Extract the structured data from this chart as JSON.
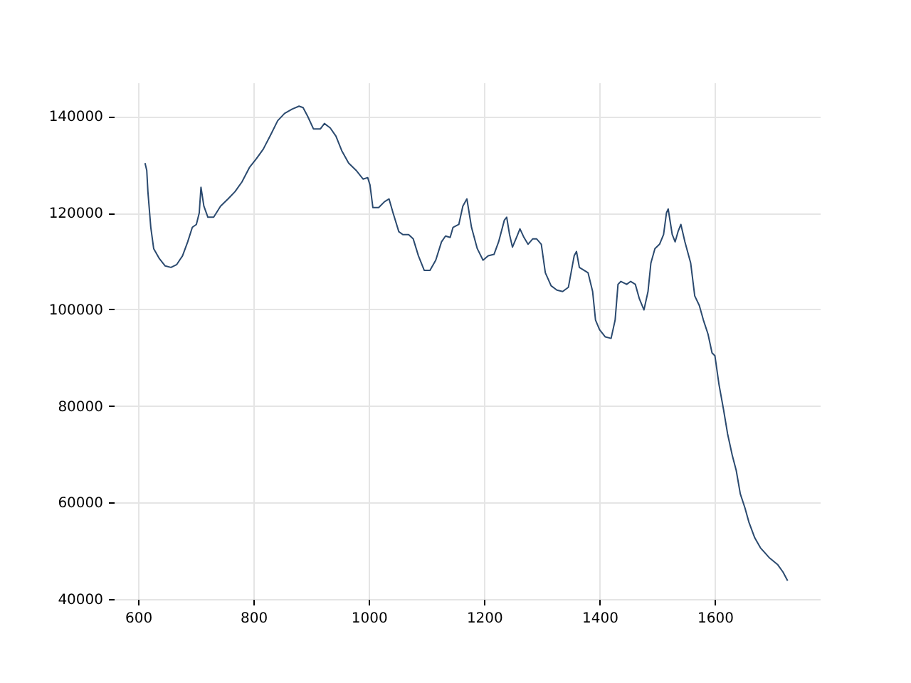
{
  "chart_data": {
    "type": "line",
    "grid": true,
    "xlim": [
      558,
      1782
    ],
    "ylim": [
      40000,
      147000
    ],
    "xticks": [
      600,
      800,
      1000,
      1200,
      1400,
      1600
    ],
    "yticks": [
      40000,
      60000,
      80000,
      100000,
      120000,
      140000
    ],
    "series": [
      {
        "color": "#2b4a6f",
        "x": [
          612,
          615,
          617,
          622,
          627,
          637,
          647,
          657,
          667,
          677,
          686,
          694,
          701,
          706,
          709,
          714,
          721,
          731,
          743,
          756,
          768,
          780,
          793,
          805,
          817,
          830,
          842,
          854,
          867,
          879,
          886,
          894,
          904,
          916,
          923,
          933,
          943,
          953,
          965,
          978,
          990,
          998,
          1002,
          1007,
          1017,
          1027,
          1035,
          1042,
          1052,
          1059,
          1069,
          1077,
          1086,
          1096,
          1106,
          1116,
          1126,
          1133,
          1141,
          1146,
          1156,
          1163,
          1170,
          1178,
          1188,
          1198,
          1207,
          1217,
          1225,
          1235,
          1239,
          1244,
          1249,
          1257,
          1262,
          1269,
          1276,
          1284,
          1291,
          1299,
          1306,
          1316,
          1326,
          1336,
          1346,
          1356,
          1360,
          1365,
          1373,
          1380,
          1388,
          1393,
          1400,
          1410,
          1420,
          1427,
          1432,
          1437,
          1447,
          1454,
          1462,
          1469,
          1477,
          1484,
          1489,
          1496,
          1504,
          1511,
          1516,
          1519,
          1526,
          1531,
          1536,
          1541,
          1548,
          1558,
          1565,
          1573,
          1580,
          1588,
          1595,
          1600,
          1607,
          1615,
          1622,
          1630,
          1637,
          1644,
          1652,
          1659,
          1669,
          1679,
          1694,
          1709,
          1718,
          1726
        ],
        "values": [
          130300,
          128800,
          124400,
          117000,
          112600,
          110500,
          109000,
          108700,
          109300,
          111100,
          114000,
          117000,
          117600,
          120000,
          125300,
          121400,
          119100,
          119100,
          121400,
          122900,
          124400,
          126400,
          129400,
          131200,
          133200,
          136200,
          139100,
          140600,
          141500,
          142100,
          141800,
          140000,
          137400,
          137400,
          138500,
          137600,
          135900,
          132900,
          130300,
          128800,
          127000,
          127300,
          125800,
          121100,
          121100,
          122300,
          122900,
          120000,
          116100,
          115500,
          115500,
          114600,
          111100,
          108100,
          108100,
          110200,
          114000,
          115200,
          114900,
          117000,
          117600,
          121400,
          122900,
          117000,
          112600,
          110200,
          111100,
          111400,
          114000,
          118500,
          119100,
          115500,
          112900,
          115200,
          116700,
          114900,
          113500,
          114600,
          114600,
          113500,
          107600,
          104900,
          104000,
          103700,
          104600,
          111100,
          112000,
          108700,
          108100,
          107600,
          103700,
          97800,
          95800,
          94300,
          94000,
          97800,
          105200,
          105800,
          105200,
          105800,
          105200,
          102200,
          99900,
          103700,
          109600,
          112600,
          113500,
          115500,
          120000,
          120800,
          115500,
          114000,
          116100,
          117600,
          114000,
          109600,
          102800,
          100800,
          97800,
          94900,
          91000,
          90400,
          84500,
          79200,
          74200,
          69800,
          66600,
          61800,
          58900,
          55900,
          52700,
          50600,
          48600,
          47100,
          45600,
          43800
        ]
      }
    ]
  }
}
